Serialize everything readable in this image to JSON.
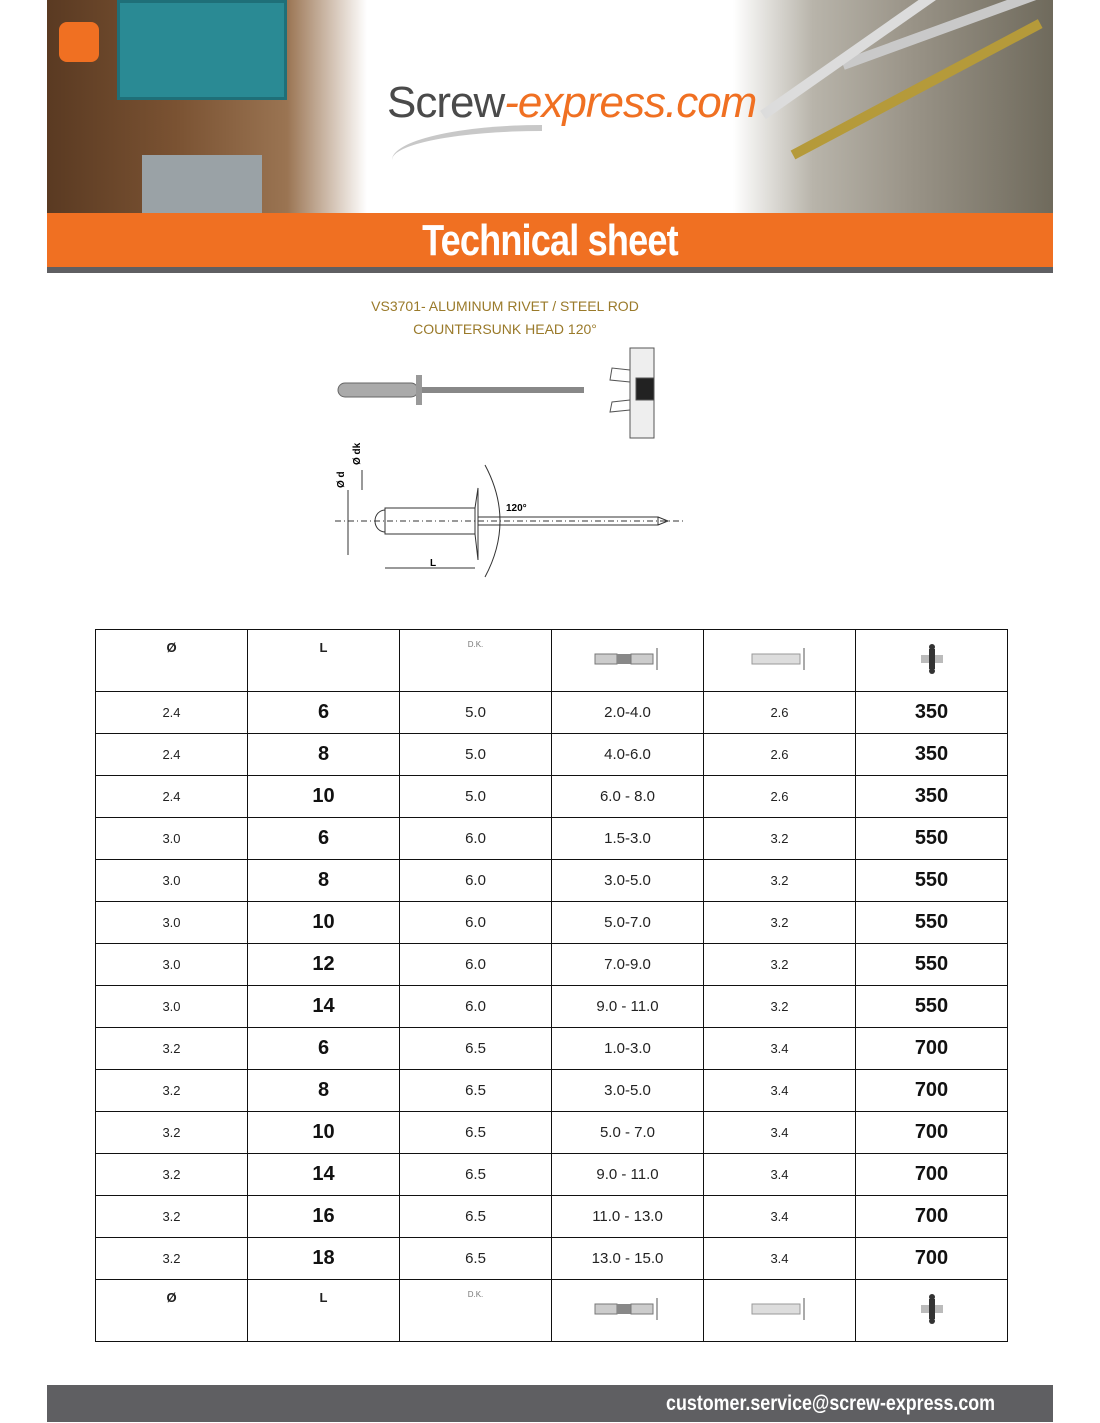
{
  "header": {
    "logo_dark": "Screw",
    "logo_orange": "-express.com",
    "banner_title": "Technical sheet",
    "brand_color": "#f07022"
  },
  "product": {
    "line1": "VS3701- ALUMINUM RIVET / STEEL ROD",
    "line2": "COUNTERSUNK HEAD 120°",
    "angle_label": "120°",
    "label_d": "Ø d",
    "label_dk": "Ø dk",
    "label_L": "L"
  },
  "table": {
    "headers": {
      "d": "Ø",
      "L": "L",
      "dk": "D.K.",
      "icons": [
        "grip-range-icon",
        "hole-diameter-icon",
        "rivet-quantity-icon"
      ]
    },
    "rows": [
      [
        "2.4",
        "6",
        "5.0",
        "2.0-4.0",
        "2.6",
        "350"
      ],
      [
        "2.4",
        "8",
        "5.0",
        "4.0-6.0",
        "2.6",
        "350"
      ],
      [
        "2.4",
        "10",
        "5.0",
        "6.0 - 8.0",
        "2.6",
        "350"
      ],
      [
        "3.0",
        "6",
        "6.0",
        "1.5-3.0",
        "3.2",
        "550"
      ],
      [
        "3.0",
        "8",
        "6.0",
        "3.0-5.0",
        "3.2",
        "550"
      ],
      [
        "3.0",
        "10",
        "6.0",
        "5.0-7.0",
        "3.2",
        "550"
      ],
      [
        "3.0",
        "12",
        "6.0",
        "7.0-9.0",
        "3.2",
        "550"
      ],
      [
        "3.0",
        "14",
        "6.0",
        "9.0 - 11.0",
        "3.2",
        "550"
      ],
      [
        "3.2",
        "6",
        "6.5",
        "1.0-3.0",
        "3.4",
        "700"
      ],
      [
        "3.2",
        "8",
        "6.5",
        "3.0-5.0",
        "3.4",
        "700"
      ],
      [
        "3.2",
        "10",
        "6.5",
        "5.0 - 7.0",
        "3.4",
        "700"
      ],
      [
        "3.2",
        "14",
        "6.5",
        "9.0 - 11.0",
        "3.4",
        "700"
      ],
      [
        "3.2",
        "16",
        "6.5",
        "11.0 - 13.0",
        "3.4",
        "700"
      ],
      [
        "3.2",
        "18",
        "6.5",
        "13.0 - 15.0",
        "3.4",
        "700"
      ]
    ]
  },
  "footer": {
    "email": "customer.service@screw-express.com"
  }
}
